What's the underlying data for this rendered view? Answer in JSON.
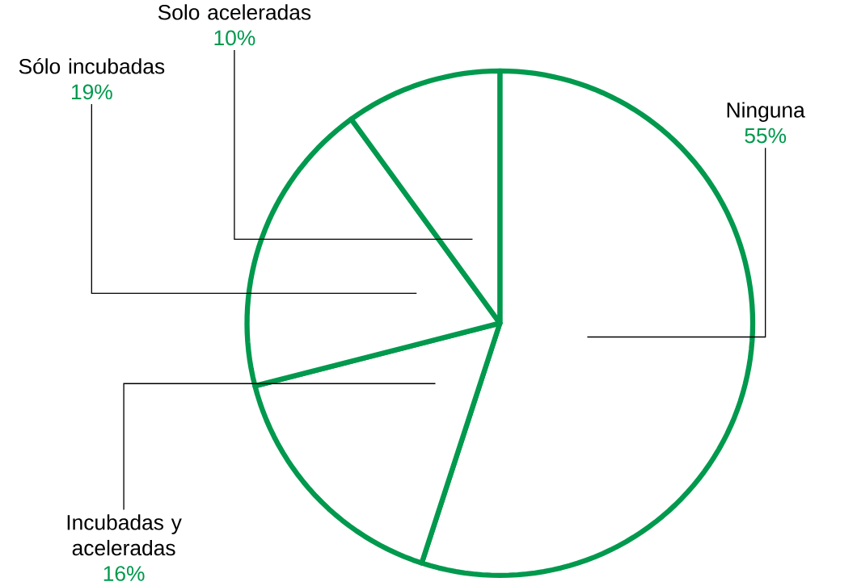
{
  "chart_data": {
    "type": "pie",
    "categories": [
      "Ninguna",
      "Incubadas y aceleradas",
      "Sólo incubadas",
      "Solo aceleradas"
    ],
    "values": [
      55,
      16,
      19,
      10
    ],
    "colors": [
      "#00994d",
      "#00994d",
      "#00994d",
      "#00994d"
    ],
    "data_labels": true,
    "value_labels": [
      "55%",
      "16%",
      "19%",
      "10%"
    ]
  }
}
